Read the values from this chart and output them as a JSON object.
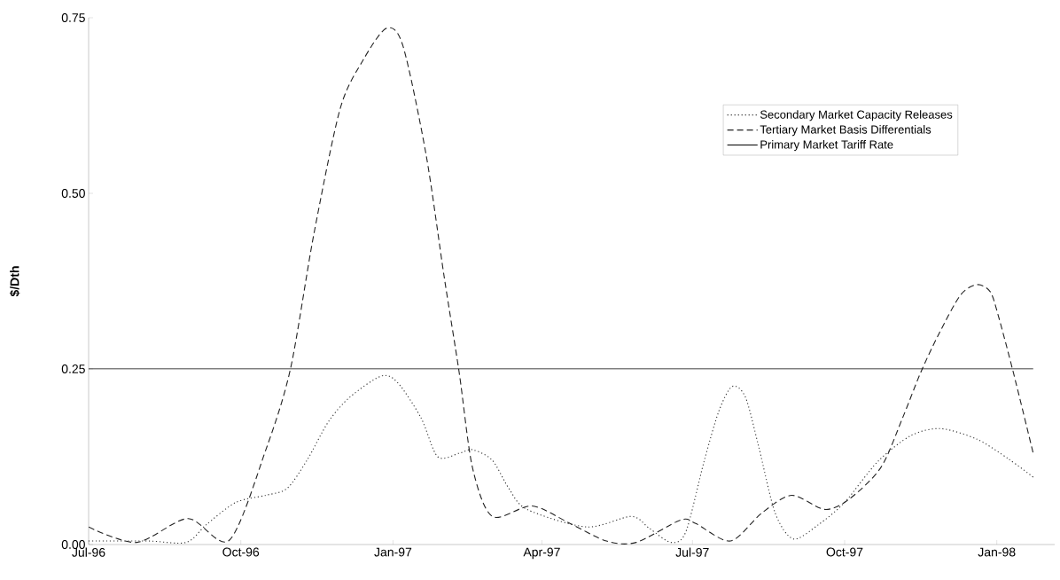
{
  "chart_data": {
    "type": "line",
    "ylabel": "$/Dth",
    "xlim": [
      "1996-07-01",
      "1998-02-05"
    ],
    "xticks": [
      {
        "value": "1996-07-01",
        "label": "Jul-96"
      },
      {
        "value": "1996-10-01",
        "label": "Oct-96"
      },
      {
        "value": "1997-01-01",
        "label": "Jan-97"
      },
      {
        "value": "1997-04-01",
        "label": "Apr-97"
      },
      {
        "value": "1997-07-01",
        "label": "Jul-97"
      },
      {
        "value": "1997-10-01",
        "label": "Oct-97"
      },
      {
        "value": "1998-01-01",
        "label": "Jan-98"
      }
    ],
    "ylim": [
      0,
      0.75
    ],
    "yticks": [
      {
        "value": 0,
        "label": "0.00"
      },
      {
        "value": 0.25,
        "label": "0.25"
      },
      {
        "value": 0.5,
        "label": "0.50"
      },
      {
        "value": 0.75,
        "label": "0.75"
      }
    ],
    "legend": "top right",
    "marker": "none",
    "grid": false,
    "series": [
      {
        "name": "Secondary Market Capacity Releases",
        "color": "#333333",
        "line_style": "dotted",
        "x": [
          "1996-07-01",
          "1996-08-06",
          "1996-08-29",
          "1996-09-10",
          "1996-09-28",
          "1996-10-16",
          "1996-10-29",
          "1996-11-10",
          "1996-11-23",
          "1996-12-06",
          "1996-12-25",
          "1997-01-04",
          "1997-01-18",
          "1997-01-28",
          "1997-02-10",
          "1997-02-18",
          "1997-03-02",
          "1997-03-12",
          "1997-03-23",
          "1997-04-28",
          "1997-05-25",
          "1997-06-05",
          "1997-06-18",
          "1997-06-27",
          "1997-07-08",
          "1997-07-17",
          "1997-07-25",
          "1997-08-02",
          "1997-08-10",
          "1997-08-20",
          "1997-08-31",
          "1997-09-15",
          "1997-10-01",
          "1997-10-21",
          "1997-11-10",
          "1997-11-28",
          "1997-12-20",
          "1998-01-08",
          "1998-01-23"
        ],
        "values": [
          0.005,
          0.005,
          0.003,
          0.028,
          0.06,
          0.07,
          0.08,
          0.12,
          0.175,
          0.21,
          0.24,
          0.23,
          0.18,
          0.125,
          0.13,
          0.135,
          0.12,
          0.08,
          0.05,
          0.025,
          0.04,
          0.023,
          0.003,
          0.018,
          0.118,
          0.19,
          0.225,
          0.21,
          0.14,
          0.045,
          0.008,
          0.028,
          0.06,
          0.118,
          0.155,
          0.165,
          0.15,
          0.122,
          0.096
        ]
      },
      {
        "name": "Tertiary Market Basis Differentials",
        "color": "#222222",
        "line_style": "dashed",
        "x": [
          "1996-07-01",
          "1996-07-30",
          "1996-08-30",
          "1996-09-24",
          "1996-10-16",
          "1996-10-31",
          "1996-11-14",
          "1996-11-30",
          "1996-12-14",
          "1996-12-28",
          "1997-01-07",
          "1997-01-21",
          "1997-02-01",
          "1997-02-10",
          "1997-02-18",
          "1997-03-02",
          "1997-03-26",
          "1997-04-18",
          "1997-05-10",
          "1997-05-28",
          "1997-06-24",
          "1997-07-03",
          "1997-07-24",
          "1997-08-12",
          "1997-08-30",
          "1997-09-19",
          "1997-10-04",
          "1997-10-23",
          "1997-11-05",
          "1997-11-16",
          "1997-11-27",
          "1997-12-10",
          "1997-12-20",
          "1997-12-28",
          "1998-01-02",
          "1998-01-11",
          "1998-01-23"
        ],
        "values": [
          0.025,
          0.003,
          0.037,
          0.006,
          0.134,
          0.25,
          0.44,
          0.62,
          0.69,
          0.735,
          0.71,
          0.555,
          0.38,
          0.245,
          0.11,
          0.04,
          0.055,
          0.03,
          0.005,
          0.003,
          0.035,
          0.03,
          0.005,
          0.045,
          0.07,
          0.05,
          0.065,
          0.11,
          0.18,
          0.245,
          0.3,
          0.355,
          0.37,
          0.36,
          0.325,
          0.245,
          0.13
        ]
      },
      {
        "name": "Primary Market Tariff Rate",
        "color": "#000000",
        "line_style": "solid",
        "x": [
          "1996-07-01",
          "1998-01-23"
        ],
        "values": [
          0.25,
          0.25
        ]
      }
    ]
  }
}
